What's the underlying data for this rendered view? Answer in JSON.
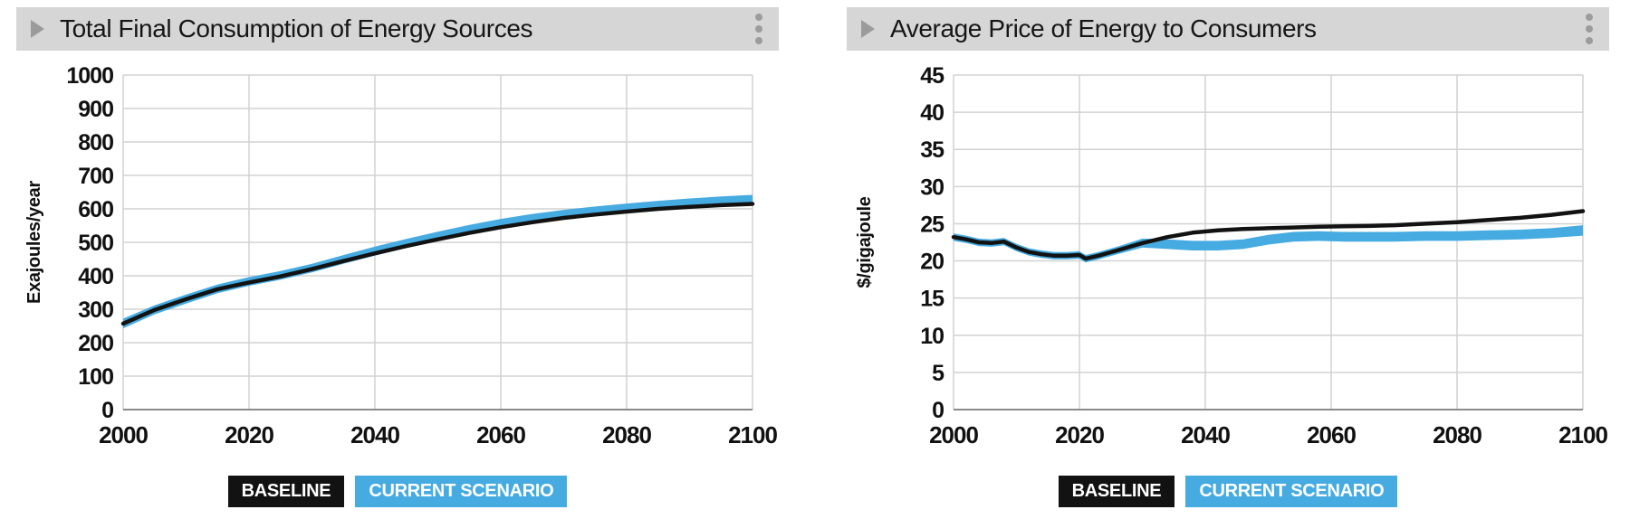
{
  "colors": {
    "header_bg": "#d6d6d6",
    "icon_gray": "#9c9c9c",
    "grid": "#d2d2d2",
    "axis_line": "#8a8a8a",
    "baseline_black": "#121212",
    "scenario_blue": "#45abe1"
  },
  "chart_data": [
    {
      "type": "line",
      "title": "Total Final Consumption of Energy Sources",
      "ylabel": "Exajoules/year",
      "xlabel": "",
      "xlim": [
        2000,
        2100
      ],
      "ylim": [
        0,
        1000
      ],
      "ytick_step": 100,
      "xticks": [
        2000,
        2020,
        2040,
        2060,
        2080,
        2100
      ],
      "grid": true,
      "legend_position": "bottom",
      "x": [
        2000,
        2005,
        2010,
        2015,
        2020,
        2025,
        2030,
        2035,
        2040,
        2045,
        2050,
        2055,
        2060,
        2065,
        2070,
        2075,
        2080,
        2085,
        2090,
        2095,
        2100
      ],
      "series": [
        {
          "name": "BASELINE",
          "kind": "line",
          "color": "#121212",
          "values": [
            257,
            298,
            330,
            360,
            380,
            398,
            420,
            444,
            467,
            489,
            509,
            528,
            545,
            560,
            573,
            583,
            592,
            600,
            606,
            611,
            615
          ]
        },
        {
          "name": "CURRENT SCENARIO",
          "kind": "band",
          "color": "#45abe1",
          "low": [
            243,
            285,
            317,
            348,
            370,
            388,
            410,
            436,
            460,
            483,
            504,
            523,
            541,
            556,
            569,
            580,
            590,
            598,
            604,
            609,
            612
          ],
          "high": [
            272,
            312,
            344,
            374,
            396,
            414,
            436,
            462,
            487,
            510,
            532,
            552,
            570,
            585,
            597,
            607,
            616,
            624,
            631,
            637,
            642
          ]
        }
      ]
    },
    {
      "type": "line",
      "title": "Average Price of Energy to Consumers",
      "ylabel": "$/gigajoule",
      "xlabel": "",
      "xlim": [
        2000,
        2100
      ],
      "ylim": [
        0,
        45
      ],
      "ytick_step": 5,
      "xticks": [
        2000,
        2020,
        2040,
        2060,
        2080,
        2100
      ],
      "grid": true,
      "legend_position": "bottom",
      "x": [
        2000,
        2002,
        2004,
        2006,
        2008,
        2010,
        2012,
        2014,
        2016,
        2018,
        2020,
        2021,
        2023,
        2026,
        2030,
        2034,
        2038,
        2042,
        2046,
        2050,
        2054,
        2058,
        2062,
        2066,
        2070,
        2075,
        2080,
        2085,
        2090,
        2095,
        2100
      ],
      "series": [
        {
          "name": "BASELINE",
          "kind": "line",
          "color": "#121212",
          "values": [
            23.2,
            22.9,
            22.5,
            22.4,
            22.6,
            21.8,
            21.2,
            20.9,
            20.7,
            20.7,
            20.8,
            20.3,
            20.7,
            21.4,
            22.4,
            23.2,
            23.8,
            24.1,
            24.3,
            24.4,
            24.5,
            24.6,
            24.65,
            24.7,
            24.8,
            25.0,
            25.2,
            25.5,
            25.8,
            26.2,
            26.7
          ]
        },
        {
          "name": "CURRENT SCENARIO",
          "kind": "band",
          "color": "#45abe1",
          "low": [
            22.7,
            22.4,
            22.0,
            21.9,
            22.1,
            21.3,
            20.7,
            20.4,
            20.2,
            20.2,
            20.3,
            19.8,
            20.2,
            20.9,
            21.8,
            21.6,
            21.4,
            21.4,
            21.6,
            22.2,
            22.6,
            22.7,
            22.6,
            22.6,
            22.6,
            22.7,
            22.7,
            22.8,
            22.9,
            23.1,
            23.4
          ],
          "high": [
            23.7,
            23.4,
            23.0,
            22.9,
            23.1,
            22.3,
            21.7,
            21.4,
            21.2,
            21.2,
            21.3,
            20.8,
            21.2,
            21.9,
            23.0,
            22.9,
            22.7,
            22.7,
            22.9,
            23.5,
            23.9,
            24.0,
            23.9,
            23.9,
            23.9,
            24.0,
            24.0,
            24.1,
            24.2,
            24.4,
            24.8
          ]
        }
      ]
    }
  ]
}
